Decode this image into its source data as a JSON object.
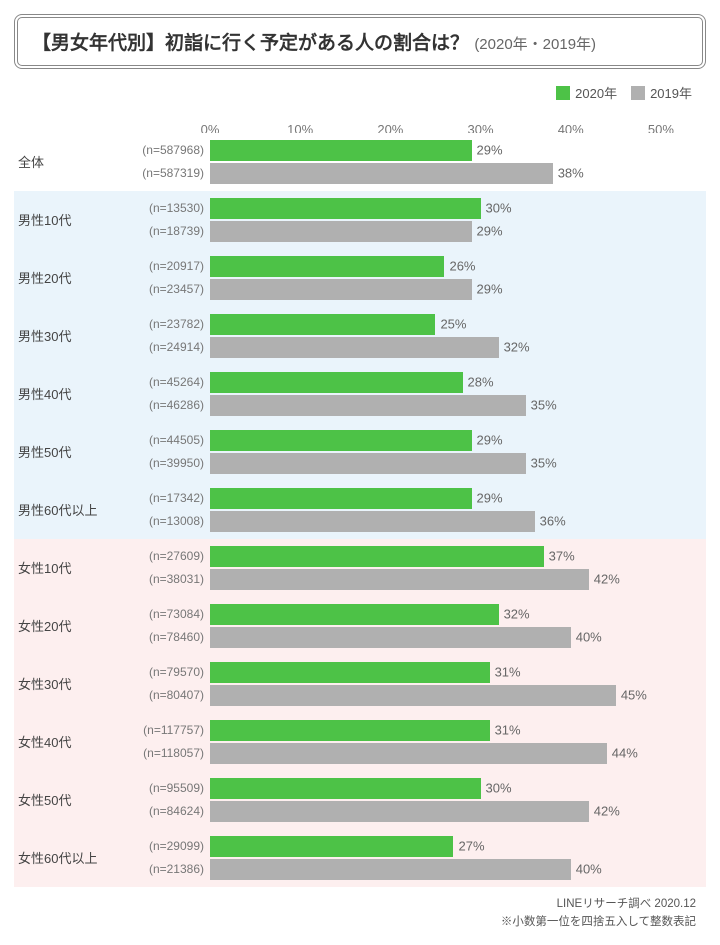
{
  "title": {
    "prefix": "【男女年代別】",
    "main": "初詣に行く予定がある人の割合は？",
    "sub": "(2020年・2019年)"
  },
  "legend": [
    {
      "label": "2020年",
      "color": "#4dc247"
    },
    {
      "label": "2019年",
      "color": "#b0b0b0"
    }
  ],
  "axis": {
    "max_pct": 55,
    "ticks": [
      0,
      10,
      20,
      30,
      40,
      50
    ],
    "gridline_color": "#d9d9d9",
    "baseline_color": "#999999"
  },
  "colors": {
    "series_2020": "#4dc247",
    "series_2019": "#b0b0b0",
    "bg_overall": "#ffffff",
    "bg_male": "#eaf4fb",
    "bg_female": "#fdefef"
  },
  "groups": [
    {
      "label": "全体",
      "section": "overall",
      "n2020": 587968,
      "n2019": 587319,
      "v2020": 29,
      "v2019": 38
    },
    {
      "label": "男性10代",
      "section": "male",
      "n2020": 13530,
      "n2019": 18739,
      "v2020": 30,
      "v2019": 29
    },
    {
      "label": "男性20代",
      "section": "male",
      "n2020": 20917,
      "n2019": 23457,
      "v2020": 26,
      "v2019": 29
    },
    {
      "label": "男性30代",
      "section": "male",
      "n2020": 23782,
      "n2019": 24914,
      "v2020": 25,
      "v2019": 32
    },
    {
      "label": "男性40代",
      "section": "male",
      "n2020": 45264,
      "n2019": 46286,
      "v2020": 28,
      "v2019": 35
    },
    {
      "label": "男性50代",
      "section": "male",
      "n2020": 44505,
      "n2019": 39950,
      "v2020": 29,
      "v2019": 35
    },
    {
      "label": "男性60代以上",
      "section": "male",
      "n2020": 17342,
      "n2019": 13008,
      "v2020": 29,
      "v2019": 36
    },
    {
      "label": "女性10代",
      "section": "female",
      "n2020": 27609,
      "n2019": 38031,
      "v2020": 37,
      "v2019": 42
    },
    {
      "label": "女性20代",
      "section": "female",
      "n2020": 73084,
      "n2019": 78460,
      "v2020": 32,
      "v2019": 40
    },
    {
      "label": "女性30代",
      "section": "female",
      "n2020": 79570,
      "n2019": 80407,
      "v2020": 31,
      "v2019": 45
    },
    {
      "label": "女性40代",
      "section": "female",
      "n2020": 117757,
      "n2019": 118057,
      "v2020": 31,
      "v2019": 44
    },
    {
      "label": "女性50代",
      "section": "female",
      "n2020": 95509,
      "n2019": 84624,
      "v2020": 30,
      "v2019": 42
    },
    {
      "label": "女性60代以上",
      "section": "female",
      "n2020": 29099,
      "n2019": 21386,
      "v2020": 27,
      "v2019": 40
    }
  ],
  "footer": {
    "source": "LINEリサーチ調べ 2020.12",
    "note": "※小数第一位を四捨五入して整数表記"
  }
}
